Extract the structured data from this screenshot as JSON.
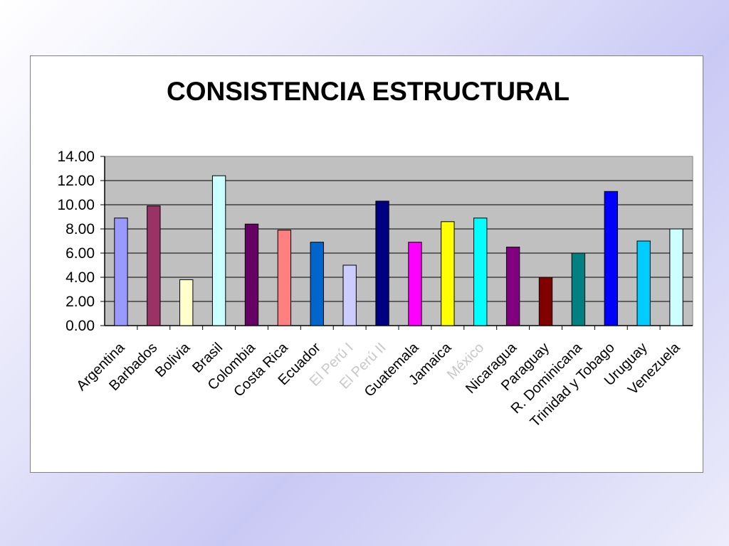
{
  "chart_data": {
    "type": "bar",
    "title": "CONSISTENCIA ESTRUCTURAL",
    "xlabel": "",
    "ylabel": "",
    "ylim": [
      0,
      14
    ],
    "y_ticks": [
      "0.00",
      "2.00",
      "4.00",
      "6.00",
      "8.00",
      "10.00",
      "12.00",
      "14.00"
    ],
    "grid": true,
    "plot_background": "#c0c0c0",
    "categories": [
      "Argentina",
      "Barbados",
      "Bolivia",
      "Brasil",
      "Colombia",
      "Costa Rica",
      "Ecuador",
      "El Perú I",
      "El Perú II",
      "Guatemala",
      "Jamaica",
      "México",
      "Nicaragua",
      "Paraguay",
      "R. Dominicana",
      "Trinidad y Tobago",
      "Uruguay",
      "Venezuela"
    ],
    "faded_categories": [
      "El Perú I",
      "El Perú II",
      "México"
    ],
    "values": [
      8.9,
      9.9,
      3.8,
      12.4,
      8.4,
      7.9,
      6.9,
      5.0,
      10.3,
      6.9,
      8.6,
      8.9,
      6.5,
      4.0,
      6.0,
      11.1,
      7.0,
      8.0
    ],
    "colors": [
      "#9999ff",
      "#993366",
      "#ffffcc",
      "#ccffff",
      "#660066",
      "#ff8080",
      "#0066cc",
      "#ccccff",
      "#000080",
      "#ff00ff",
      "#ffff00",
      "#00ffff",
      "#800080",
      "#800000",
      "#008080",
      "#0000ff",
      "#00ccff",
      "#ccffff"
    ]
  }
}
